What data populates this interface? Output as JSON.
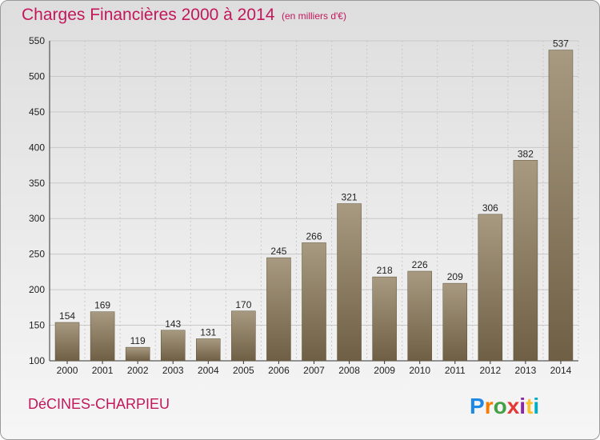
{
  "header": {
    "title": "Charges Financières 2000 à 2014",
    "unit": "(en milliers d'€)"
  },
  "footer": {
    "city": "DéCINES-CHARPIEU",
    "brand": "Proxiti"
  },
  "colors": {
    "bar_light": "#a89a80",
    "bar_dark": "#6e5f45",
    "title": "#c2185b",
    "grid": "#c8c8c8"
  },
  "chart_data": {
    "type": "bar",
    "title": "Charges Financières 2000 à 2014",
    "subtitle": "(en milliers d'€)",
    "categories": [
      "2000",
      "2001",
      "2002",
      "2003",
      "2004",
      "2005",
      "2006",
      "2007",
      "2008",
      "2009",
      "2010",
      "2011",
      "2012",
      "2013",
      "2014"
    ],
    "values": [
      154,
      169,
      119,
      143,
      131,
      170,
      245,
      266,
      321,
      218,
      226,
      209,
      306,
      382,
      537
    ],
    "ylim": [
      100,
      550
    ],
    "yticks": [
      100,
      150,
      200,
      250,
      300,
      350,
      400,
      450,
      500,
      550
    ],
    "grid": true,
    "data_labels": true
  }
}
